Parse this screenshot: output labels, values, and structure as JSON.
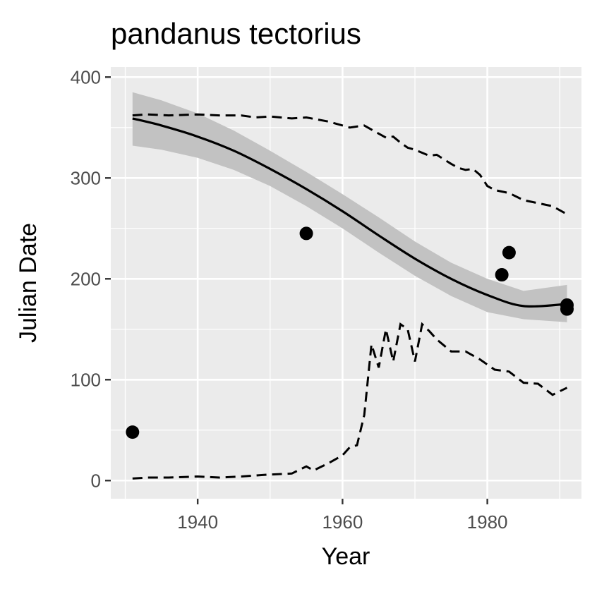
{
  "chart_data": {
    "type": "scatter",
    "title": "pandanus tectorius",
    "xlabel": "Year",
    "ylabel": "Julian Date",
    "xlim": [
      1928,
      1993
    ],
    "ylim": [
      -18,
      410
    ],
    "x_ticks": [
      1940,
      1960,
      1980
    ],
    "y_ticks": [
      0,
      100,
      200,
      300,
      400
    ],
    "grid": true,
    "legend": "none",
    "colors": {
      "panel": "#ebebeb",
      "grid": "#ffffff",
      "points": "#000000",
      "fit_line": "#000000",
      "ribbon": "#c2c2c2",
      "tick_text": "#4d4d4d",
      "tick_mark": "#333333"
    },
    "points": [
      {
        "x": 1931,
        "y": 48
      },
      {
        "x": 1955,
        "y": 245
      },
      {
        "x": 1982,
        "y": 204
      },
      {
        "x": 1983,
        "y": 226
      },
      {
        "x": 1991,
        "y": 170
      },
      {
        "x": 1991,
        "y": 174
      }
    ],
    "fit": {
      "x": [
        1931,
        1935,
        1940,
        1945,
        1950,
        1955,
        1960,
        1965,
        1970,
        1975,
        1980,
        1985,
        1991
      ],
      "y": [
        359,
        352,
        341,
        327,
        309,
        289,
        267,
        243,
        220,
        200,
        184,
        173,
        175
      ],
      "lower": [
        332,
        328,
        320,
        308,
        292,
        272,
        250,
        226,
        203,
        183,
        167,
        160,
        157
      ],
      "upper": [
        385,
        377,
        364,
        347,
        327,
        306,
        284,
        261,
        237,
        216,
        200,
        188,
        194
      ]
    },
    "upper_bound": {
      "x": [
        1931,
        1933,
        1936,
        1940,
        1943,
        1946,
        1948,
        1950,
        1953,
        1955,
        1958,
        1961,
        1963,
        1964,
        1966,
        1967,
        1968,
        1969,
        1970,
        1972,
        1973,
        1975,
        1976,
        1977,
        1978,
        1979,
        1980,
        1981,
        1983,
        1985,
        1987,
        1989,
        1991
      ],
      "y": [
        362,
        363,
        362,
        363,
        362,
        362,
        360,
        361,
        359,
        360,
        356,
        350,
        352,
        348,
        340,
        341,
        335,
        330,
        328,
        322,
        323,
        314,
        310,
        308,
        309,
        303,
        292,
        288,
        285,
        278,
        275,
        272,
        264
      ]
    },
    "lower_bound": {
      "x": [
        1931,
        1933,
        1936,
        1940,
        1943,
        1946,
        1948,
        1950,
        1953,
        1955,
        1956,
        1958,
        1960,
        1961,
        1962,
        1963,
        1964,
        1965,
        1966,
        1967,
        1968,
        1969,
        1970,
        1971,
        1972,
        1973,
        1975,
        1977,
        1979,
        1981,
        1983,
        1985,
        1987,
        1989,
        1991
      ],
      "y": [
        2,
        3,
        3,
        4,
        3,
        4,
        5,
        6,
        7,
        14,
        10,
        17,
        25,
        33,
        35,
        65,
        135,
        112,
        150,
        118,
        155,
        150,
        118,
        155,
        148,
        140,
        128,
        128,
        120,
        110,
        108,
        97,
        96,
        85,
        92
      ]
    }
  }
}
